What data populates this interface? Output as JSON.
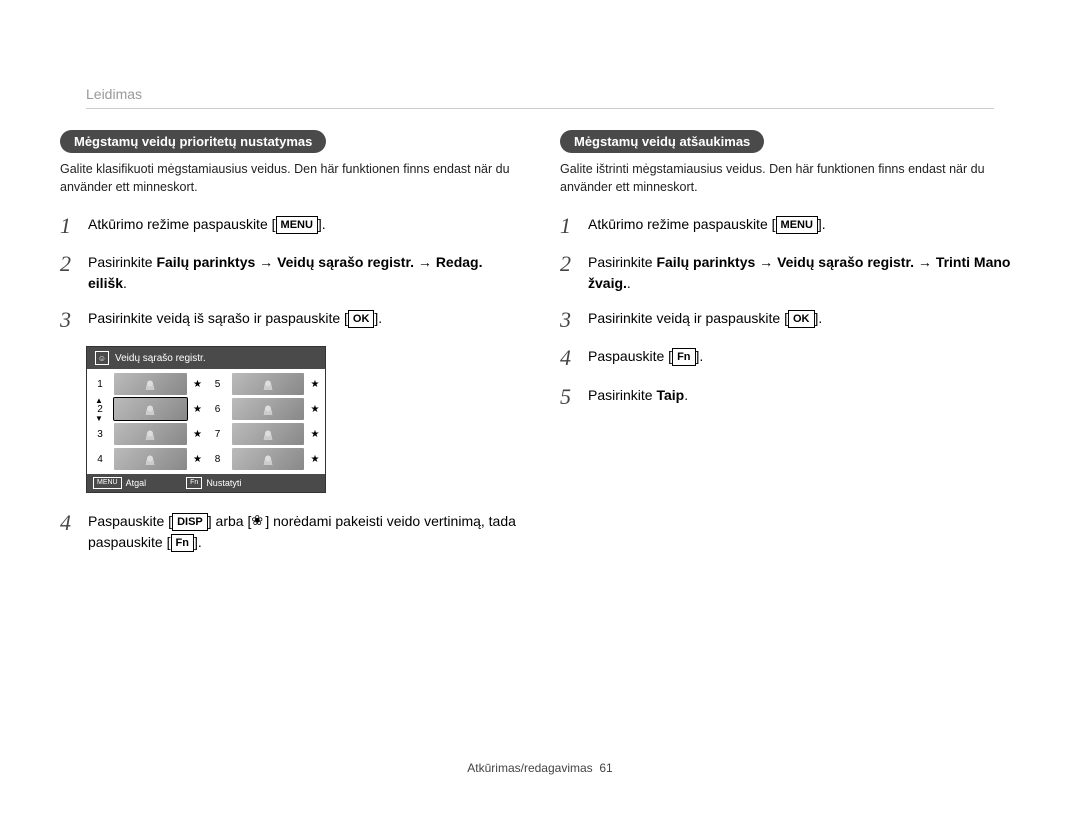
{
  "header": {
    "section_label": "Leidimas"
  },
  "footer": {
    "text": "Atkūrimas/redagavimas",
    "page": "61"
  },
  "keys": {
    "menu": "MENU",
    "ok": "OK",
    "fn": "Fn",
    "disp": "DISP"
  },
  "left": {
    "pill": "Mėgstamų veidų prioritetų nustatymas",
    "intro": "Galite klasifikuoti mėgstamiausius veidus. Den här funktionen finns endast när du använder ett minneskort.",
    "steps": {
      "s1_a": "Atkūrimo režime paspauskite [",
      "s1_b": "].",
      "s2_a": "Pasirinkite ",
      "s2_bold1": "Failų parinktys",
      "s2_arrow": " → ",
      "s2_bold2": "Veidų sąrašo registr.",
      "s2_arrow2": " → ",
      "s2_bold3": "Redag. eilišk",
      "s2_end": ".",
      "s3_a": "Pasirinkite veidą iš sąrašo ir paspauskite [",
      "s3_b": "].",
      "s4_a": "Paspauskite [",
      "s4_b": "] arba [",
      "s4_c": "] norėdami pakeisti veido vertinimą, tada paspauskite [",
      "s4_d": "]."
    },
    "screenshot": {
      "title": "Veidų sąrašo registr.",
      "rows": [
        {
          "n": "1"
        },
        {
          "n": "5"
        },
        {
          "n": "2",
          "selected": true
        },
        {
          "n": "6"
        },
        {
          "n": "3"
        },
        {
          "n": "7"
        },
        {
          "n": "4"
        },
        {
          "n": "8"
        }
      ],
      "footer_back": "Atgal",
      "footer_set": "Nustatyti",
      "footer_back_key": "MENU",
      "footer_set_key": "Fn"
    }
  },
  "right": {
    "pill": "Mėgstamų veidų atšaukimas",
    "intro": "Galite ištrinti mėgstamiausius veidus. Den här funktionen finns endast när du använder ett minneskort.",
    "steps": {
      "s1_a": "Atkūrimo režime paspauskite [",
      "s1_b": "].",
      "s2_a": "Pasirinkite ",
      "s2_bold1": "Failų parinktys",
      "s2_arrow": " → ",
      "s2_bold2": "Veidų sąrašo registr.",
      "s2_arrow2": " → ",
      "s2_bold3": "Trinti Mano žvaig.",
      "s2_end": ".",
      "s3_a": "Pasirinkite veidą ir paspauskite [",
      "s3_b": "].",
      "s4_a": "Paspauskite [",
      "s4_b": "].",
      "s5_a": "Pasirinkite ",
      "s5_bold": "Taip",
      "s5_end": "."
    }
  },
  "style": {
    "pill_bg": "#4a4a4a",
    "pill_fg": "#ffffff",
    "text_color": "#000000",
    "muted_color": "#999999",
    "border_color": "#cccccc",
    "page_bg": "#ffffff"
  }
}
